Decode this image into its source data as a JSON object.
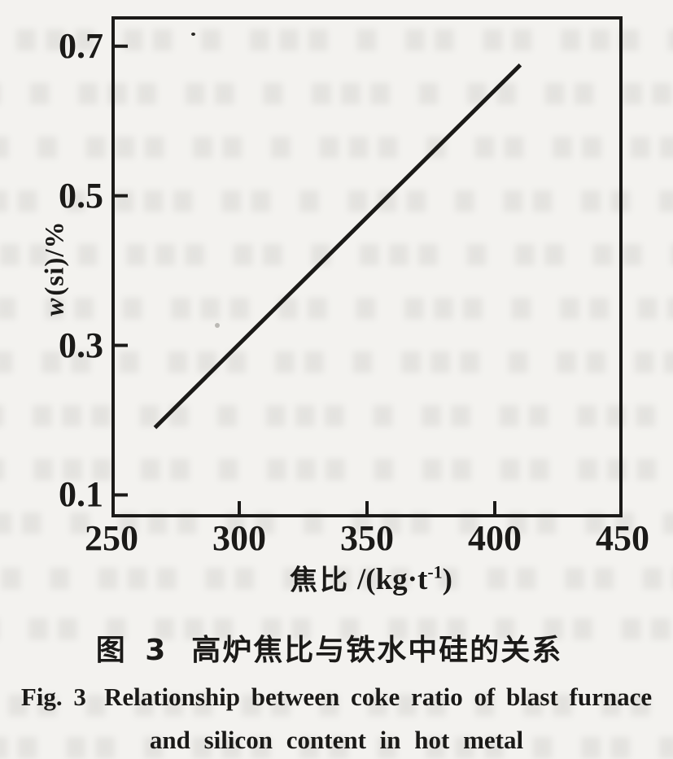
{
  "page": {
    "bg_color": "#f3f2ef",
    "ink_color": "#1b1a18",
    "kind": "scanned journal figure"
  },
  "chart_data": {
    "type": "line",
    "title": "",
    "xlabel": "焦比 /(kg·t⁻¹)",
    "ylabel": "w(si)/%",
    "x_ticks": [
      250,
      300,
      350,
      400,
      450
    ],
    "y_ticks": [
      0.7,
      0.5,
      0.3,
      0.1
    ],
    "xlim": [
      250,
      450
    ],
    "ylim": [
      0.07,
      0.74
    ],
    "grid": false,
    "legend": false,
    "frame": "full box, ticks inside",
    "series": [
      {
        "name": "w(Si) vs coke ratio trend line",
        "x": [
          267,
          410
        ],
        "y": [
          0.19,
          0.675
        ]
      }
    ]
  },
  "axis": {
    "y_label_w": "w",
    "y_label_rest": "(si)/%",
    "x_label_cjk": "焦比",
    "x_label_unit_prefix": "/(kg·t",
    "x_label_sup": "-1",
    "x_label_unit_suffix": ")"
  },
  "caption": {
    "cn_number": "图 3",
    "cn_text": "高炉焦比与铁水中硅的关系",
    "en_number": "Fig. 3",
    "en_line1": "Relationship between coke ratio of blast furnace",
    "en_line2": "and silicon content in hot metal"
  },
  "background_texture": {
    "description": "faint mirrored text bleed-through from reverse side of scanned page",
    "glyph_row": "▆▆ ▆ ▆▆▆ ▆▆ ▆▆ ▆ ▆▆▆ ▆ ▆▆ ▆▆▆ ▆ ▆▆ ▆▆ ▆▆▆ ▆ ▆▆"
  }
}
